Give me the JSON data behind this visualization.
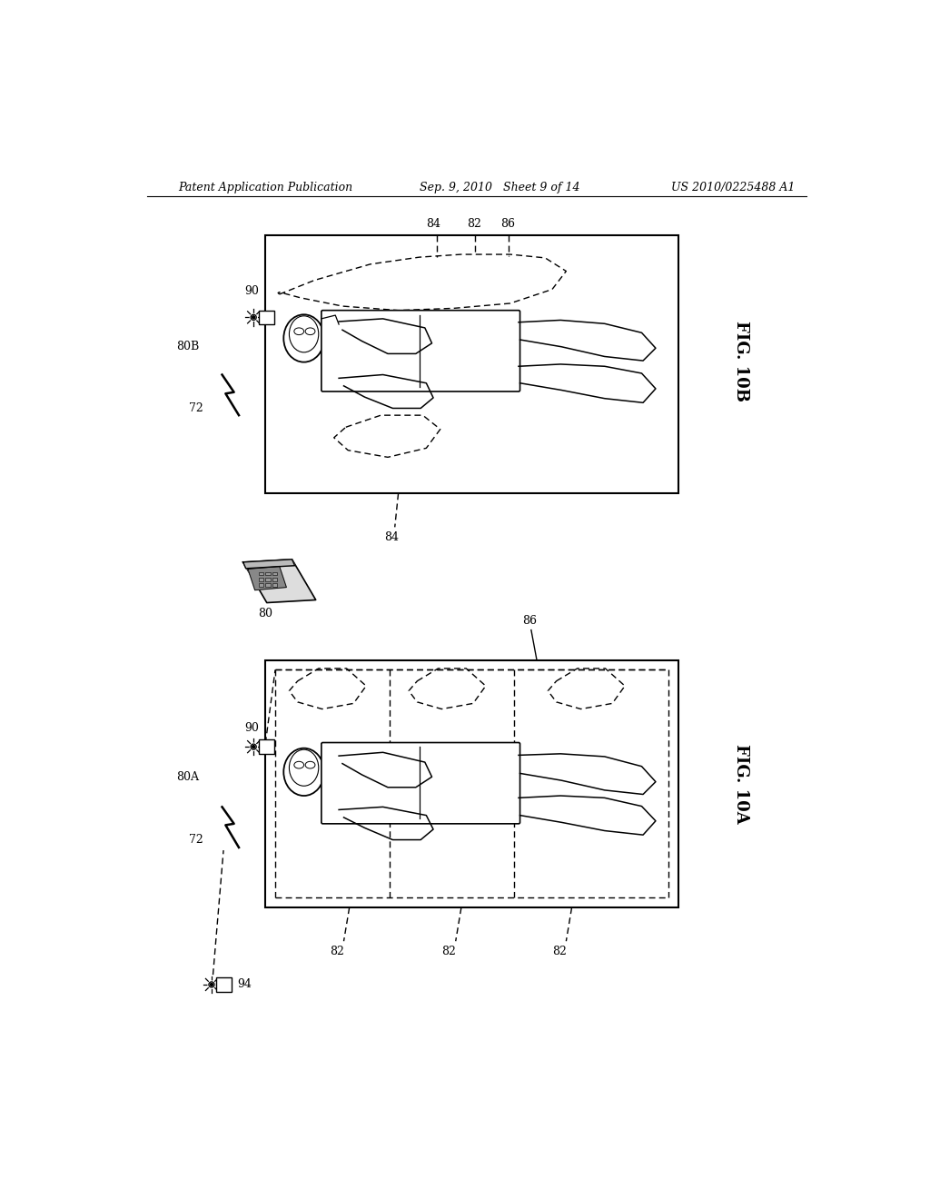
{
  "bg_color": "#ffffff",
  "title_left": "Patent Application Publication",
  "title_center": "Sep. 9, 2010   Sheet 9 of 14",
  "title_right": "US 2010/0225488 A1",
  "fig_label_10B": "FIG. 10B",
  "fig_label_10A": "FIG. 10A",
  "label_80B": "80B",
  "label_80A": "80A",
  "label_72_top": "72",
  "label_72_bot": "72",
  "label_90_top": "90",
  "label_90_bot": "90",
  "label_84_top1": "84",
  "label_84_top2": "84",
  "label_82_top": "82",
  "label_86_top": "86",
  "label_82_bot1": "82",
  "label_82_bot2": "82",
  "label_82_bot3": "82",
  "label_86_bot": "86",
  "label_80": "80",
  "label_94": "94"
}
